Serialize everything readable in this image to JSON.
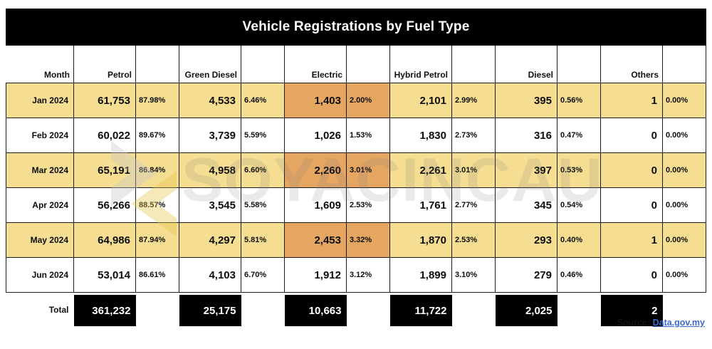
{
  "title": "Vehicle Registrations by Fuel Type",
  "watermark": "SOYACINCAU",
  "source": {
    "label": "Source:",
    "link_text": "Data.gov.my"
  },
  "colors": {
    "banner_bg": "#000000",
    "highlight_row": "#F5DE92",
    "electric_cell": "#E5A662",
    "link": "#3C6BC9",
    "grid": "#1a1a1a"
  },
  "table": {
    "month_header": "Month",
    "fuel_headers": [
      "Petrol",
      "Green Diesel",
      "Electric",
      "Hybrid Petrol",
      "Diesel",
      "Others"
    ],
    "rows": [
      {
        "month": "Jan 2024",
        "highlight": true,
        "values": [
          "61,753",
          "4,533",
          "1,403",
          "2,101",
          "395",
          "1"
        ],
        "pcts": [
          "87.98%",
          "6.46%",
          "2.00%",
          "2.99%",
          "0.56%",
          "0.00%"
        ]
      },
      {
        "month": "Feb 2024",
        "highlight": false,
        "values": [
          "60,022",
          "3,739",
          "1,026",
          "1,830",
          "316",
          "0"
        ],
        "pcts": [
          "89.67%",
          "5.59%",
          "1.53%",
          "2.73%",
          "0.47%",
          "0.00%"
        ]
      },
      {
        "month": "Mar 2024",
        "highlight": true,
        "values": [
          "65,191",
          "4,958",
          "2,260",
          "2,261",
          "397",
          "0"
        ],
        "pcts": [
          "86.84%",
          "6.60%",
          "3.01%",
          "3.01%",
          "0.53%",
          "0.00%"
        ]
      },
      {
        "month": "Apr 2024",
        "highlight": false,
        "values": [
          "56,266",
          "3,545",
          "1,609",
          "1,761",
          "345",
          "0"
        ],
        "pcts": [
          "88.57%",
          "5.58%",
          "2.53%",
          "2.77%",
          "0.54%",
          "0.00%"
        ]
      },
      {
        "month": "May 2024",
        "highlight": true,
        "values": [
          "64,986",
          "4,297",
          "2,453",
          "1,870",
          "293",
          "1"
        ],
        "pcts": [
          "87.94%",
          "5.81%",
          "3.32%",
          "2.53%",
          "0.40%",
          "0.00%"
        ]
      },
      {
        "month": "Jun 2024",
        "highlight": false,
        "values": [
          "53,014",
          "4,103",
          "1,912",
          "1,899",
          "279",
          "0"
        ],
        "pcts": [
          "86.61%",
          "6.70%",
          "3.12%",
          "3.10%",
          "0.46%",
          "0.00%"
        ]
      }
    ],
    "total_label": "Total",
    "totals": [
      "361,232",
      "25,175",
      "10,663",
      "11,722",
      "2,025",
      "2"
    ]
  },
  "chart_data": {
    "type": "table",
    "title": "Vehicle Registrations by Fuel Type",
    "categories": [
      "Jan 2024",
      "Feb 2024",
      "Mar 2024",
      "Apr 2024",
      "May 2024",
      "Jun 2024"
    ],
    "series": [
      {
        "name": "Petrol",
        "values": [
          61753,
          60022,
          65191,
          56266,
          64986,
          53014
        ],
        "pcts": [
          87.98,
          89.67,
          86.84,
          88.57,
          87.94,
          86.61
        ],
        "total": 361232
      },
      {
        "name": "Green Diesel",
        "values": [
          4533,
          3739,
          4958,
          3545,
          4297,
          4103
        ],
        "pcts": [
          6.46,
          5.59,
          6.6,
          5.58,
          5.81,
          6.7
        ],
        "total": 25175
      },
      {
        "name": "Electric",
        "values": [
          1403,
          1026,
          2260,
          1609,
          2453,
          1912
        ],
        "pcts": [
          2.0,
          1.53,
          3.01,
          2.53,
          3.32,
          3.12
        ],
        "total": 10663
      },
      {
        "name": "Hybrid Petrol",
        "values": [
          2101,
          1830,
          2261,
          1761,
          1870,
          1899
        ],
        "pcts": [
          2.99,
          2.73,
          3.01,
          2.77,
          2.53,
          3.1
        ],
        "total": 11722
      },
      {
        "name": "Diesel",
        "values": [
          395,
          316,
          397,
          345,
          293,
          279
        ],
        "pcts": [
          0.56,
          0.47,
          0.53,
          0.54,
          0.4,
          0.46
        ],
        "total": 2025
      },
      {
        "name": "Others",
        "values": [
          1,
          0,
          0,
          0,
          1,
          0
        ],
        "pcts": [
          0.0,
          0.0,
          0.0,
          0.0,
          0.0,
          0.0
        ],
        "total": 2
      }
    ],
    "source": "Data.gov.my"
  }
}
